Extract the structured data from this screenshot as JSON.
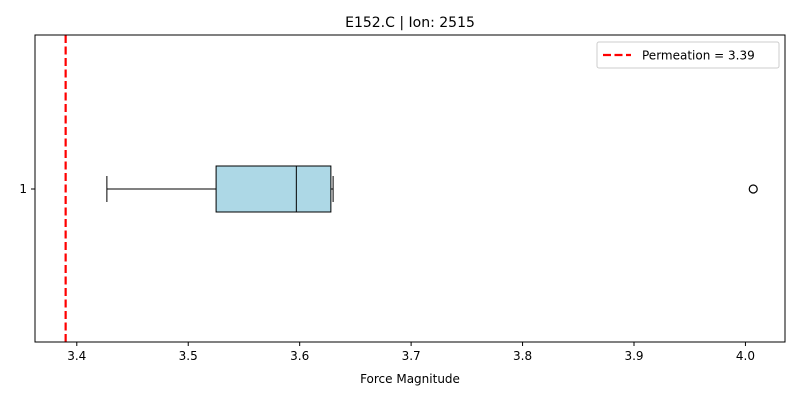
{
  "chart_data": {
    "type": "box",
    "title": "E152.C | Ion: 2515",
    "xlabel": "Force Magnitude",
    "ylabel": "",
    "orientation": "horizontal",
    "xlim": [
      3.3625,
      4.0355
    ],
    "xticks": [
      3.4,
      3.5,
      3.6,
      3.7,
      3.8,
      3.9,
      4.0
    ],
    "xtick_labels": [
      "3.4",
      "3.5",
      "3.6",
      "3.7",
      "3.8",
      "3.9",
      "4.0"
    ],
    "yticks": [
      "1"
    ],
    "boxes": [
      {
        "category": "1",
        "whisker_low": 3.427,
        "q1": 3.525,
        "median": 3.597,
        "q3": 3.628,
        "whisker_high": 3.63,
        "outliers": [
          4.007
        ],
        "fill": "#add8e6",
        "edge": "#000000"
      }
    ],
    "reference_line": {
      "value": 3.39,
      "color": "#ff0000",
      "style": "dashed"
    },
    "legend": {
      "label": "Permeation = 3.39",
      "location": "top-right"
    }
  }
}
